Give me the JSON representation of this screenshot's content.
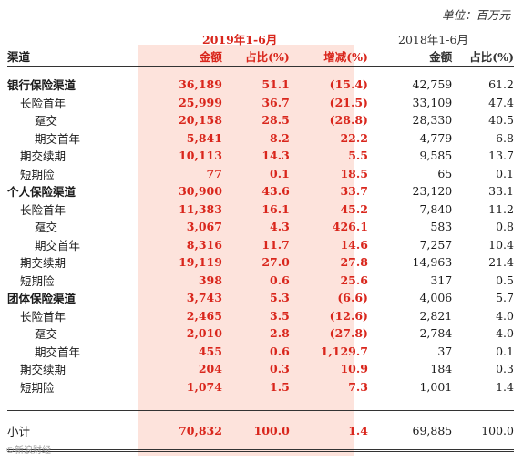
{
  "unit_label": "单位：百万元",
  "period_current": "2019年1-6月",
  "period_prior": "2018年1-6月",
  "columns": {
    "channel": "渠道",
    "amount": "金额",
    "share": "占比(%)",
    "change": "增减(%)",
    "amount_prior": "金额",
    "share_prior": "占比(%)"
  },
  "rows": [
    {
      "name": "银行保险渠道",
      "level": 0,
      "bold": true,
      "amount": "36,189",
      "share": "51.1",
      "change": "(15.4)",
      "amount_prior": "42,759",
      "share_prior": "61.2"
    },
    {
      "name": "长险首年",
      "level": 1,
      "bold": false,
      "amount": "25,999",
      "share": "36.7",
      "change": "(21.5)",
      "amount_prior": "33,109",
      "share_prior": "47.4"
    },
    {
      "name": "趸交",
      "level": 2,
      "bold": false,
      "amount": "20,158",
      "share": "28.5",
      "change": "(28.8)",
      "amount_prior": "28,330",
      "share_prior": "40.5"
    },
    {
      "name": "期交首年",
      "level": 2,
      "bold": false,
      "amount": "5,841",
      "share": "8.2",
      "change": "22.2",
      "amount_prior": "4,779",
      "share_prior": "6.8"
    },
    {
      "name": "期交续期",
      "level": 1,
      "bold": false,
      "amount": "10,113",
      "share": "14.3",
      "change": "5.5",
      "amount_prior": "9,585",
      "share_prior": "13.7"
    },
    {
      "name": "短期险",
      "level": 1,
      "bold": false,
      "amount": "77",
      "share": "0.1",
      "change": "18.5",
      "amount_prior": "65",
      "share_prior": "0.1"
    },
    {
      "name": "个人保险渠道",
      "level": 0,
      "bold": true,
      "amount": "30,900",
      "share": "43.6",
      "change": "33.7",
      "amount_prior": "23,120",
      "share_prior": "33.1"
    },
    {
      "name": "长险首年",
      "level": 1,
      "bold": false,
      "amount": "11,383",
      "share": "16.1",
      "change": "45.2",
      "amount_prior": "7,840",
      "share_prior": "11.2"
    },
    {
      "name": "趸交",
      "level": 2,
      "bold": false,
      "amount": "3,067",
      "share": "4.3",
      "change": "426.1",
      "amount_prior": "583",
      "share_prior": "0.8"
    },
    {
      "name": "期交首年",
      "level": 2,
      "bold": false,
      "amount": "8,316",
      "share": "11.7",
      "change": "14.6",
      "amount_prior": "7,257",
      "share_prior": "10.4"
    },
    {
      "name": "期交续期",
      "level": 1,
      "bold": false,
      "amount": "19,119",
      "share": "27.0",
      "change": "27.8",
      "amount_prior": "14,963",
      "share_prior": "21.4"
    },
    {
      "name": "短期险",
      "level": 1,
      "bold": false,
      "amount": "398",
      "share": "0.6",
      "change": "25.6",
      "amount_prior": "317",
      "share_prior": "0.5"
    },
    {
      "name": "团体保险渠道",
      "level": 0,
      "bold": true,
      "amount": "3,743",
      "share": "5.3",
      "change": "(6.6)",
      "amount_prior": "4,006",
      "share_prior": "5.7"
    },
    {
      "name": "长险首年",
      "level": 1,
      "bold": false,
      "amount": "2,465",
      "share": "3.5",
      "change": "(12.6)",
      "amount_prior": "2,821",
      "share_prior": "4.0"
    },
    {
      "name": "趸交",
      "level": 2,
      "bold": false,
      "amount": "2,010",
      "share": "2.8",
      "change": "(27.8)",
      "amount_prior": "2,784",
      "share_prior": "4.0"
    },
    {
      "name": "期交首年",
      "level": 2,
      "bold": false,
      "amount": "455",
      "share": "0.6",
      "change": "1,129.7",
      "amount_prior": "37",
      "share_prior": "0.1"
    },
    {
      "name": "期交续期",
      "level": 1,
      "bold": false,
      "amount": "204",
      "share": "0.3",
      "change": "10.9",
      "amount_prior": "184",
      "share_prior": "0.3"
    },
    {
      "name": "短期险",
      "level": 1,
      "bold": false,
      "amount": "1,074",
      "share": "1.5",
      "change": "7.3",
      "amount_prior": "1,001",
      "share_prior": "1.4"
    }
  ],
  "total": {
    "name": "小计",
    "amount": "70,832",
    "share": "100.0",
    "change": "1.4",
    "amount_prior": "69,885",
    "share_prior": "100.0"
  },
  "watermark": "©新浪财经"
}
